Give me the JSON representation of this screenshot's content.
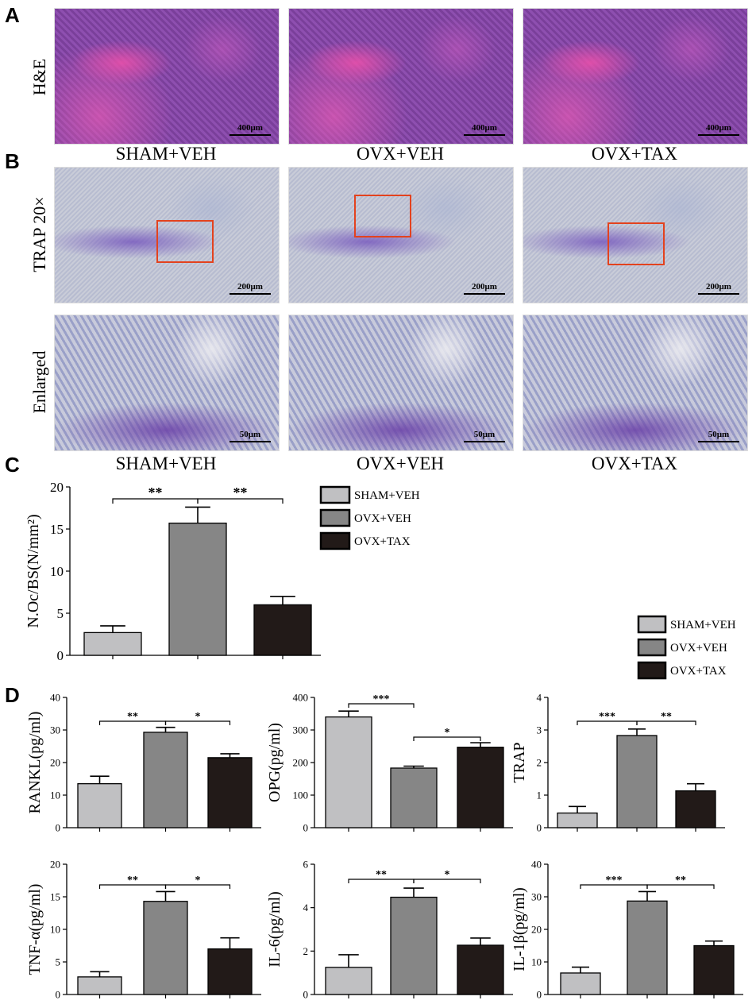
{
  "panels": {
    "a": "A",
    "b": "B",
    "c": "C",
    "d": "D"
  },
  "row_labels": {
    "he": "H&E",
    "trap": "TRAP 20×",
    "enlarged": "Enlarged"
  },
  "groups": [
    "SHAM+VEH",
    "OVX+VEH",
    "OVX+TAX"
  ],
  "scalebars": {
    "he": "400μm",
    "trap": "200μm",
    "enlarged": "50μm"
  },
  "colors": {
    "sham_veh": "#c0c0c2",
    "ovx_veh": "#868686",
    "ovx_tax": "#221a18",
    "red_box": "#e3421e"
  },
  "legend_entries": [
    "SHAM+VEH",
    "OVX+VEH",
    "OVX+TAX"
  ],
  "chart_data": [
    {
      "id": "noc",
      "type": "bar",
      "ylabel": "N.Oc/BS(N/mm²)",
      "categories": [
        "SHAM+VEH",
        "OVX+VEH",
        "OVX+TAX"
      ],
      "values": [
        2.7,
        15.7,
        6.0
      ],
      "errors": [
        0.8,
        1.9,
        1.0
      ],
      "ylim": [
        0,
        20
      ],
      "yticks": [
        0,
        5,
        10,
        15,
        20
      ],
      "significance": [
        {
          "from": 0,
          "to": 1,
          "label": "**"
        },
        {
          "from": 1,
          "to": 2,
          "label": "**"
        }
      ]
    },
    {
      "id": "rankl",
      "type": "bar",
      "ylabel": "RANKL(pg/ml)",
      "categories": [
        "SHAM+VEH",
        "OVX+VEH",
        "OVX+TAX"
      ],
      "values": [
        13.5,
        29.3,
        21.5
      ],
      "errors": [
        2.3,
        1.5,
        1.2
      ],
      "ylim": [
        0,
        40
      ],
      "yticks": [
        0,
        10,
        20,
        30,
        40
      ],
      "significance": [
        {
          "from": 0,
          "to": 1,
          "label": "**"
        },
        {
          "from": 1,
          "to": 2,
          "label": "*"
        }
      ]
    },
    {
      "id": "opg",
      "type": "bar",
      "ylabel": "OPG(pg/ml)",
      "categories": [
        "SHAM+VEH",
        "OVX+VEH",
        "OVX+TAX"
      ],
      "values": [
        340,
        183,
        247
      ],
      "errors": [
        18,
        6,
        14
      ],
      "ylim": [
        0,
        400
      ],
      "yticks": [
        0,
        100,
        200,
        300,
        400
      ],
      "significance": [
        {
          "from": 0,
          "to": 1,
          "label": "***",
          "level": "high"
        },
        {
          "from": 1,
          "to": 2,
          "label": "*",
          "level": "low"
        }
      ]
    },
    {
      "id": "trap",
      "type": "bar",
      "ylabel": "TRAP",
      "categories": [
        "SHAM+VEH",
        "OVX+VEH",
        "OVX+TAX"
      ],
      "values": [
        0.45,
        2.83,
        1.13
      ],
      "errors": [
        0.2,
        0.2,
        0.22
      ],
      "ylim": [
        0,
        4
      ],
      "yticks": [
        0,
        1,
        2,
        3,
        4
      ],
      "significance": [
        {
          "from": 0,
          "to": 1,
          "label": "***"
        },
        {
          "from": 1,
          "to": 2,
          "label": "**"
        }
      ]
    },
    {
      "id": "tnf",
      "type": "bar",
      "ylabel": "TNF-α(pg/ml)",
      "categories": [
        "SHAM+VEH",
        "OVX+VEH",
        "OVX+TAX"
      ],
      "values": [
        2.7,
        14.3,
        7.0
      ],
      "errors": [
        0.8,
        1.5,
        1.7
      ],
      "ylim": [
        0,
        20
      ],
      "yticks": [
        0,
        5,
        10,
        15,
        20
      ],
      "significance": [
        {
          "from": 0,
          "to": 1,
          "label": "**"
        },
        {
          "from": 1,
          "to": 2,
          "label": "*"
        }
      ]
    },
    {
      "id": "il6",
      "type": "bar",
      "ylabel": "IL-6(pg/ml)",
      "categories": [
        "SHAM+VEH",
        "OVX+VEH",
        "OVX+TAX"
      ],
      "values": [
        1.25,
        4.48,
        2.27
      ],
      "errors": [
        0.58,
        0.42,
        0.33
      ],
      "ylim": [
        0,
        6
      ],
      "yticks": [
        0,
        2,
        4,
        6
      ],
      "significance": [
        {
          "from": 0,
          "to": 1,
          "label": "**"
        },
        {
          "from": 1,
          "to": 2,
          "label": "*"
        }
      ]
    },
    {
      "id": "il1b",
      "type": "bar",
      "ylabel": "IL-1β(pg/ml)",
      "categories": [
        "SHAM+VEH",
        "OVX+VEH",
        "OVX+TAX"
      ],
      "values": [
        6.6,
        28.7,
        15.0
      ],
      "errors": [
        1.8,
        2.9,
        1.4
      ],
      "ylim": [
        0,
        40
      ],
      "yticks": [
        0,
        10,
        20,
        30,
        40
      ],
      "significance": [
        {
          "from": 0,
          "to": 1,
          "label": "***"
        },
        {
          "from": 1,
          "to": 2,
          "label": "**"
        }
      ]
    }
  ]
}
